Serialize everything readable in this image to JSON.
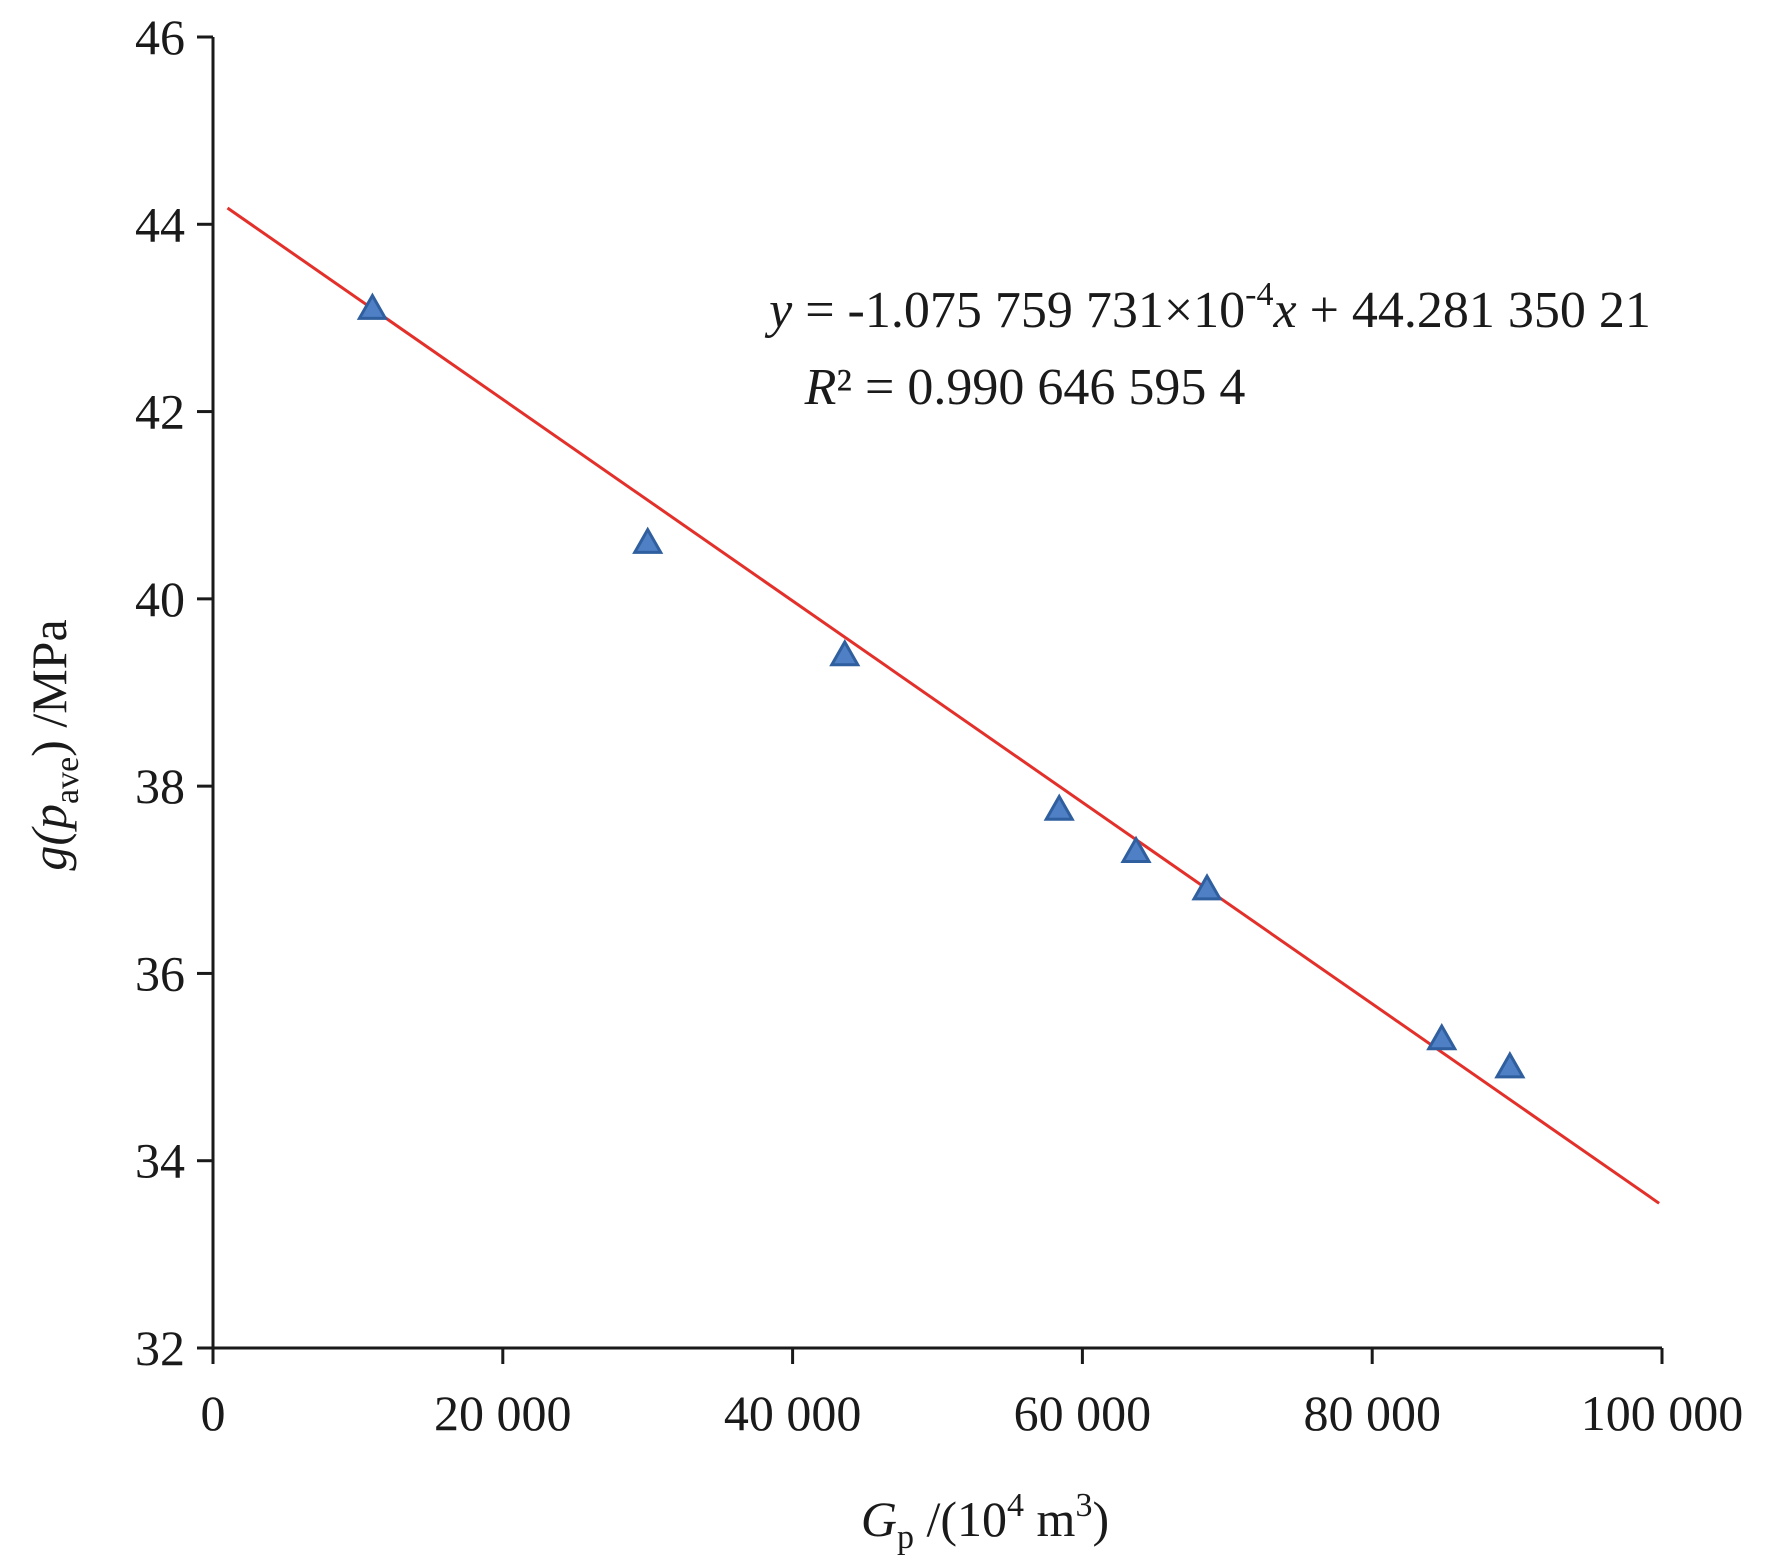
{
  "chart_data": {
    "type": "scatter",
    "xlabel": {
      "main": "G",
      "sub": "p",
      "rest": " /(10",
      "sup": "4",
      "unit": " m",
      "unit_sup": "3",
      "close": ")"
    },
    "ylabel": {
      "pre": "g(",
      "p": "p",
      "sub": "ave",
      "post": ") /MPa"
    },
    "xlim": [
      0,
      100000
    ],
    "ylim": [
      32,
      46
    ],
    "x_ticks": [
      0,
      20000,
      40000,
      60000,
      80000,
      100000
    ],
    "x_tick_labels": [
      "0",
      "20 000",
      "40 000",
      "60 000",
      "80 000",
      "100 000"
    ],
    "y_ticks": [
      32,
      34,
      36,
      38,
      40,
      42,
      44,
      46
    ],
    "y_tick_labels": [
      "32",
      "34",
      "36",
      "38",
      "40",
      "42",
      "44",
      "46"
    ],
    "grid": false,
    "points": [
      {
        "x": 11000,
        "y": 43.1
      },
      {
        "x": 30000,
        "y": 40.6
      },
      {
        "x": 43600,
        "y": 39.4
      },
      {
        "x": 58400,
        "y": 37.75
      },
      {
        "x": 63700,
        "y": 37.3
      },
      {
        "x": 68600,
        "y": 36.9
      },
      {
        "x": 84800,
        "y": 35.3
      },
      {
        "x": 89500,
        "y": 35.0
      }
    ],
    "trendline": {
      "slope": -0.0001075759731,
      "intercept": 44.28135021,
      "x_range": [
        1000,
        99800
      ]
    },
    "equation": {
      "y": "y",
      "eq": " = -1.075 759 731×10",
      "exp": "-4",
      "x": "x",
      "rest": " + 44.281 350 21"
    },
    "r2": {
      "R": "R",
      "rest": "² = 0.990 646 595 4"
    },
    "colors": {
      "points": "#4f7fc4",
      "points_edge": "#2f5f9e",
      "trendline": "#e3302a",
      "axes": "#1a1a1a"
    }
  }
}
